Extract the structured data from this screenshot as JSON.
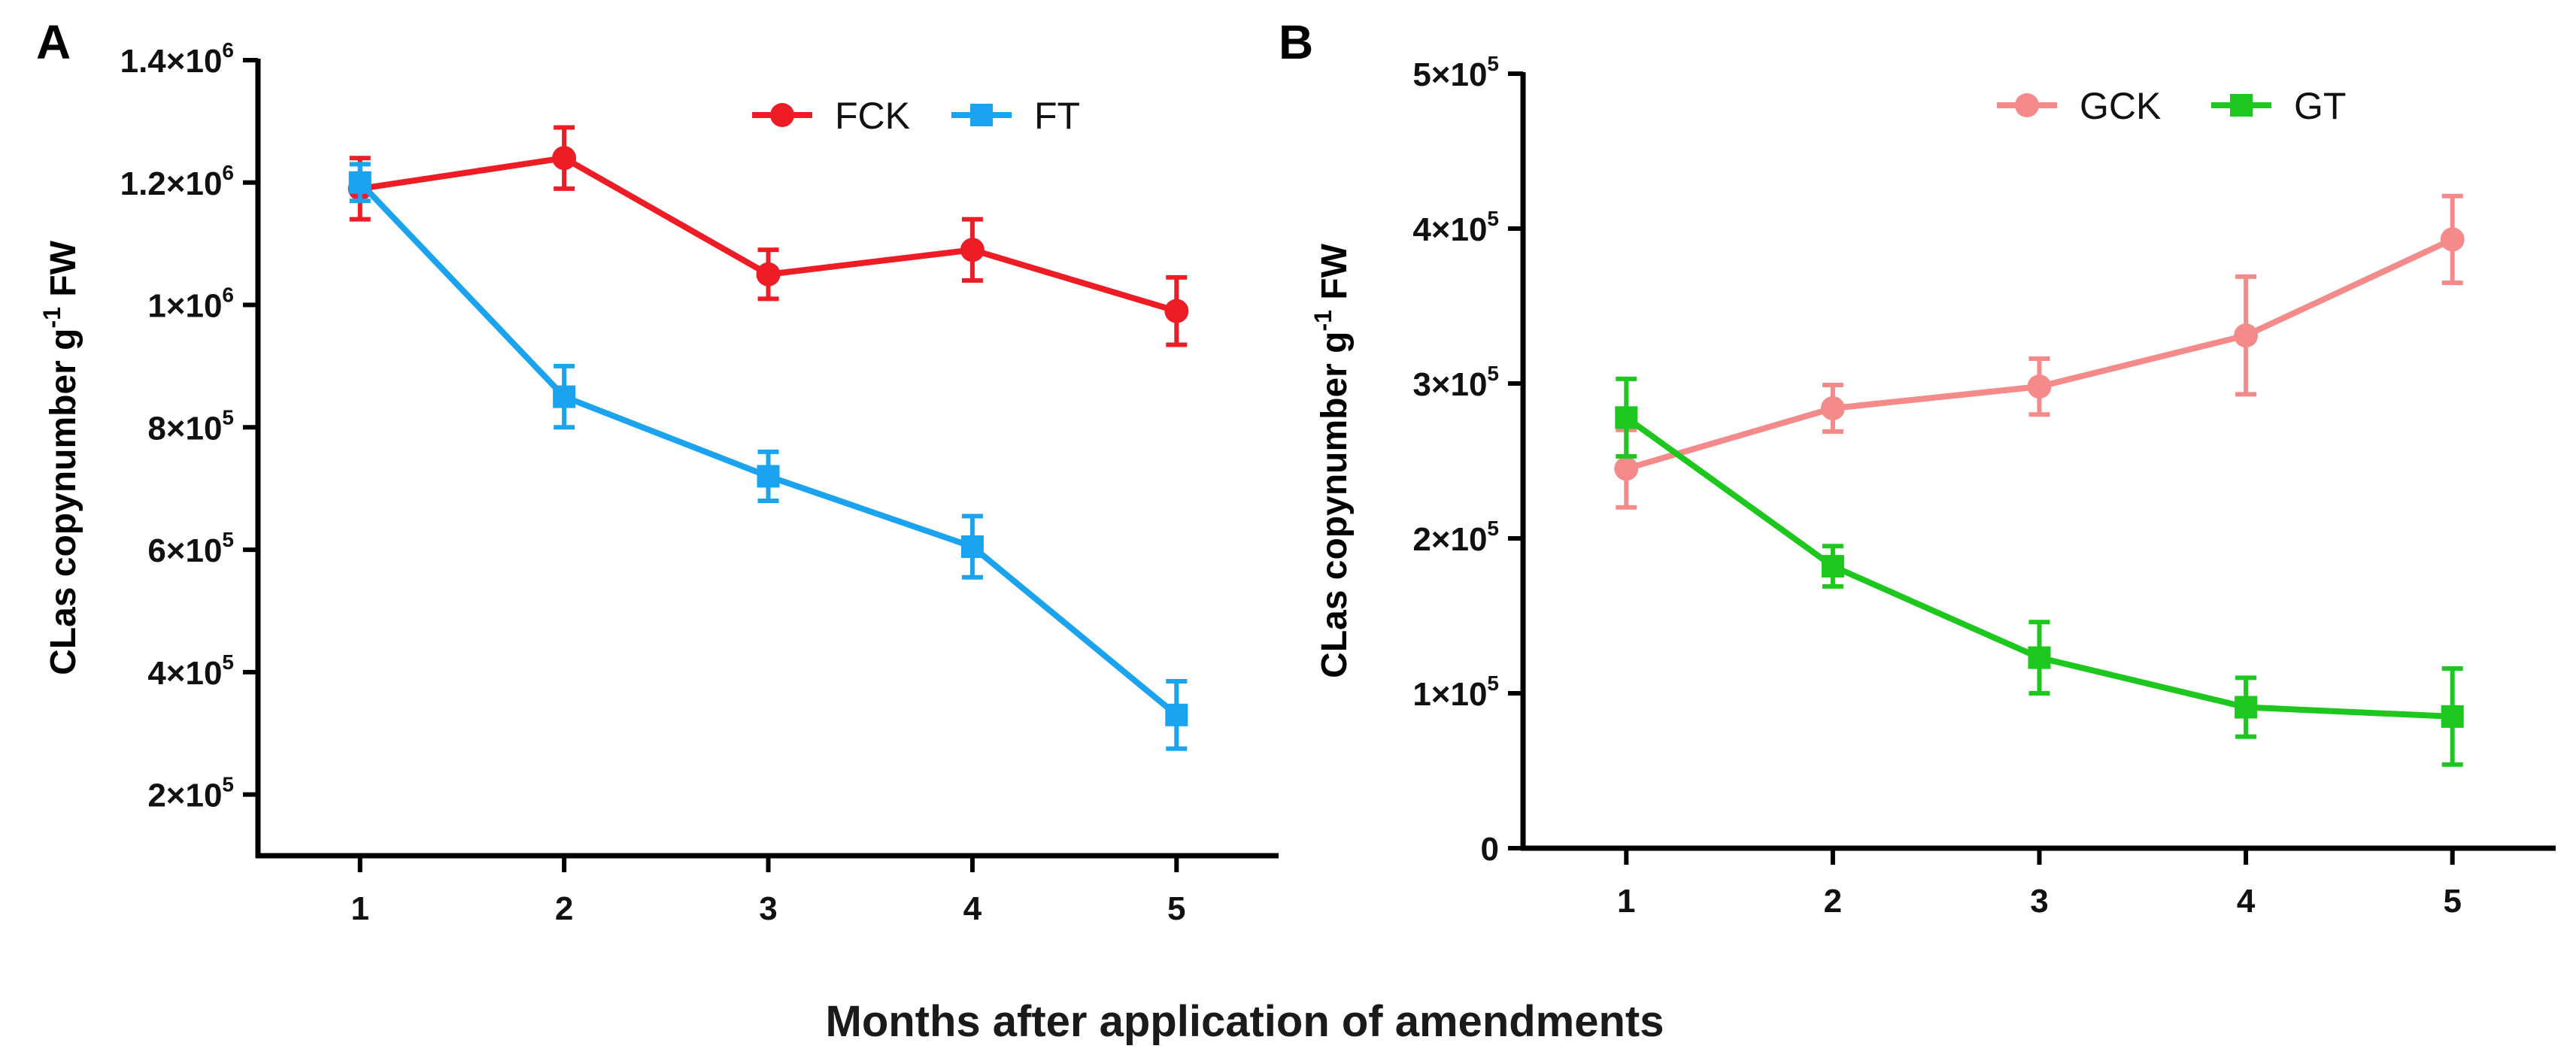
{
  "xlabel": "Months after application of amendments",
  "chart_data": [
    {
      "type": "line",
      "panel": "A",
      "title": "",
      "xlabel": "Months after application of amendments",
      "ylabel": "CLas copynumber g",
      "ylabel_sup": "-1",
      "ylabel_suffix": " FW",
      "x": [
        1,
        2,
        3,
        4,
        5
      ],
      "xlim": [
        0.5,
        5.5
      ],
      "ylim": [
        100000,
        1400000
      ],
      "yticks": [
        {
          "value": 200000,
          "base": "2×10",
          "exp": "5"
        },
        {
          "value": 400000,
          "base": "4×10",
          "exp": "5"
        },
        {
          "value": 600000,
          "base": "6×10",
          "exp": "5"
        },
        {
          "value": 800000,
          "base": "8×10",
          "exp": "5"
        },
        {
          "value": 1000000,
          "base": "1×10",
          "exp": "6"
        },
        {
          "value": 1200000,
          "base": "1.2×10",
          "exp": "6"
        },
        {
          "value": 1400000,
          "base": "1.4×10",
          "exp": "6"
        }
      ],
      "legend_position": "top-right",
      "grid": false,
      "series": [
        {
          "name": "FCK",
          "color": "#ee1c25",
          "marker": "circle",
          "values": [
            1190000,
            1240000,
            1050000,
            1090000,
            990000
          ],
          "errors": [
            50000,
            50000,
            40000,
            50000,
            55000
          ]
        },
        {
          "name": "FT",
          "color": "#1ba3f0",
          "marker": "square",
          "values": [
            1200000,
            850000,
            720000,
            605000,
            330000
          ],
          "errors": [
            30000,
            50000,
            40000,
            50000,
            55000
          ]
        }
      ]
    },
    {
      "type": "line",
      "panel": "B",
      "title": "",
      "xlabel": "Months after application of amendments",
      "ylabel": "CLas copynumber g",
      "ylabel_sup": "-1",
      "ylabel_suffix": " FW",
      "x": [
        1,
        2,
        3,
        4,
        5
      ],
      "xlim": [
        0.5,
        5.5
      ],
      "ylim": [
        0,
        500000
      ],
      "yticks": [
        {
          "value": 0,
          "base": "0",
          "exp": ""
        },
        {
          "value": 100000,
          "base": "1×10",
          "exp": "5"
        },
        {
          "value": 200000,
          "base": "2×10",
          "exp": "5"
        },
        {
          "value": 300000,
          "base": "3×10",
          "exp": "5"
        },
        {
          "value": 400000,
          "base": "4×10",
          "exp": "5"
        },
        {
          "value": 500000,
          "base": "5×10",
          "exp": "5"
        }
      ],
      "legend_position": "top-right",
      "grid": false,
      "series": [
        {
          "name": "GCK",
          "color": "#f48a8a",
          "marker": "circle",
          "values": [
            245000,
            284000,
            298000,
            331000,
            393000
          ],
          "errors": [
            25000,
            15000,
            18000,
            38000,
            28000
          ]
        },
        {
          "name": "GT",
          "color": "#1ec71e",
          "marker": "square",
          "values": [
            278000,
            182000,
            123000,
            91000,
            85000
          ],
          "errors": [
            25000,
            13000,
            23000,
            19000,
            31000
          ]
        }
      ]
    }
  ]
}
